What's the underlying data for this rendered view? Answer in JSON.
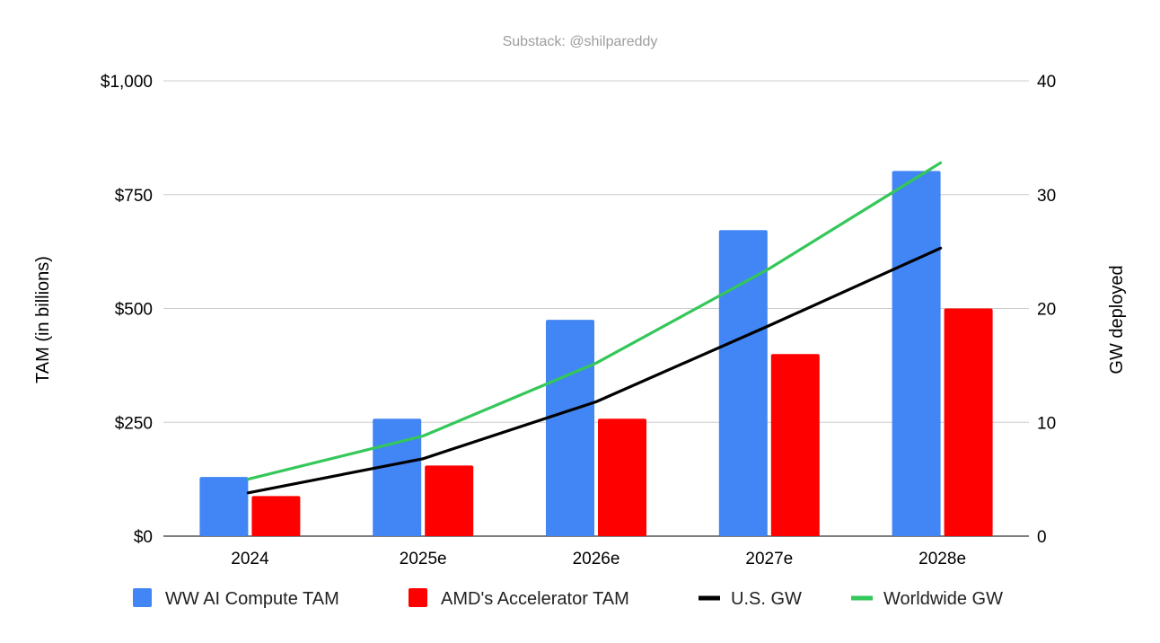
{
  "chart_data": {
    "type": "bar",
    "title": "Substack: @shilpareddy",
    "categories": [
      "2024",
      "2025e",
      "2026e",
      "2027e",
      "2028e"
    ],
    "series": [
      {
        "name": "WW AI Compute TAM",
        "type": "bar",
        "axis": "left",
        "color": "#4285f4",
        "values": [
          130,
          258,
          475,
          672,
          802
        ]
      },
      {
        "name": "AMD's Accelerator TAM",
        "type": "bar",
        "axis": "left",
        "color": "#ff0000",
        "values": [
          88,
          155,
          258,
          400,
          500
        ]
      },
      {
        "name": "U.S. GW",
        "type": "line",
        "axis": "right",
        "color": "#000000",
        "values": [
          3.8,
          6.8,
          11.8,
          18.5,
          25.3
        ]
      },
      {
        "name": "Worldwide GW",
        "type": "line",
        "axis": "right",
        "color": "#34c759",
        "values": [
          5.0,
          8.8,
          15.2,
          23.5,
          32.8
        ]
      }
    ],
    "left_axis": {
      "label": "TAM (in billions)",
      "min": 0,
      "max": 1000,
      "ticks": [
        0,
        250,
        500,
        750,
        1000
      ],
      "tick_labels": [
        "$0",
        "$250",
        "$500",
        "$750",
        "$1,000"
      ]
    },
    "right_axis": {
      "label": "GW deployed",
      "min": 0,
      "max": 40,
      "ticks": [
        0,
        10,
        20,
        30,
        40
      ],
      "tick_labels": [
        "0",
        "10",
        "20",
        "30",
        "40"
      ]
    },
    "grid": true,
    "legend_position": "bottom"
  }
}
